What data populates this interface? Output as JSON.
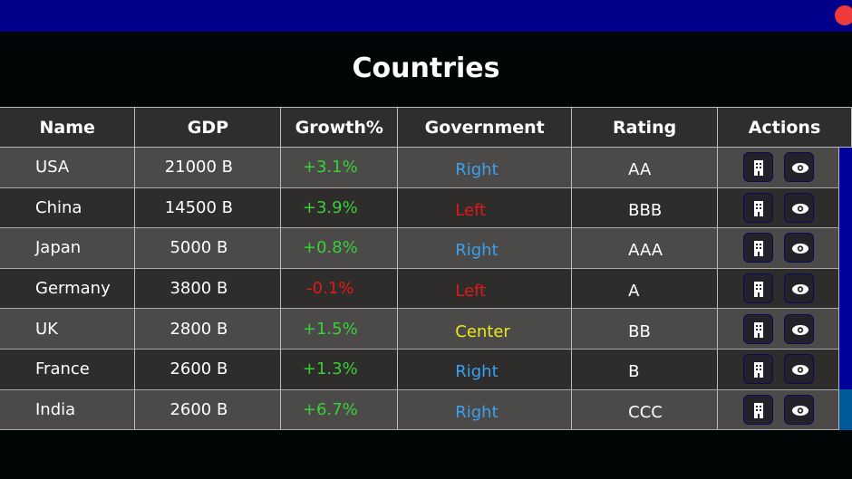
{
  "title": "Countries",
  "columns": [
    "Name",
    "GDP",
    "Growth%",
    "Government",
    "Rating",
    "Actions"
  ],
  "colors": {
    "Right": "#3aa0f0",
    "Left": "#e01818",
    "Center": "#e8e820",
    "positive": "#38d038",
    "negative": "#e01818"
  },
  "rows": [
    {
      "name": "USA",
      "gdp": "21000 B",
      "growth": "+3.1%",
      "gov": "Right",
      "rating": "AA"
    },
    {
      "name": "China",
      "gdp": "14500 B",
      "growth": "+3.9%",
      "gov": "Left",
      "rating": "BBB"
    },
    {
      "name": "Japan",
      "gdp": "5000 B",
      "growth": "+0.8%",
      "gov": "Right",
      "rating": "AAA"
    },
    {
      "name": "Germany",
      "gdp": "3800 B",
      "growth": "-0.1%",
      "gov": "Left",
      "rating": "A"
    },
    {
      "name": "UK",
      "gdp": "2800 B",
      "growth": "+1.5%",
      "gov": "Center",
      "rating": "BB"
    },
    {
      "name": "France",
      "gdp": "2600 B",
      "growth": "+1.3%",
      "gov": "Right",
      "rating": "B"
    },
    {
      "name": "India",
      "gdp": "2600 B",
      "growth": "+6.7%",
      "gov": "Right",
      "rating": "CCC"
    }
  ]
}
